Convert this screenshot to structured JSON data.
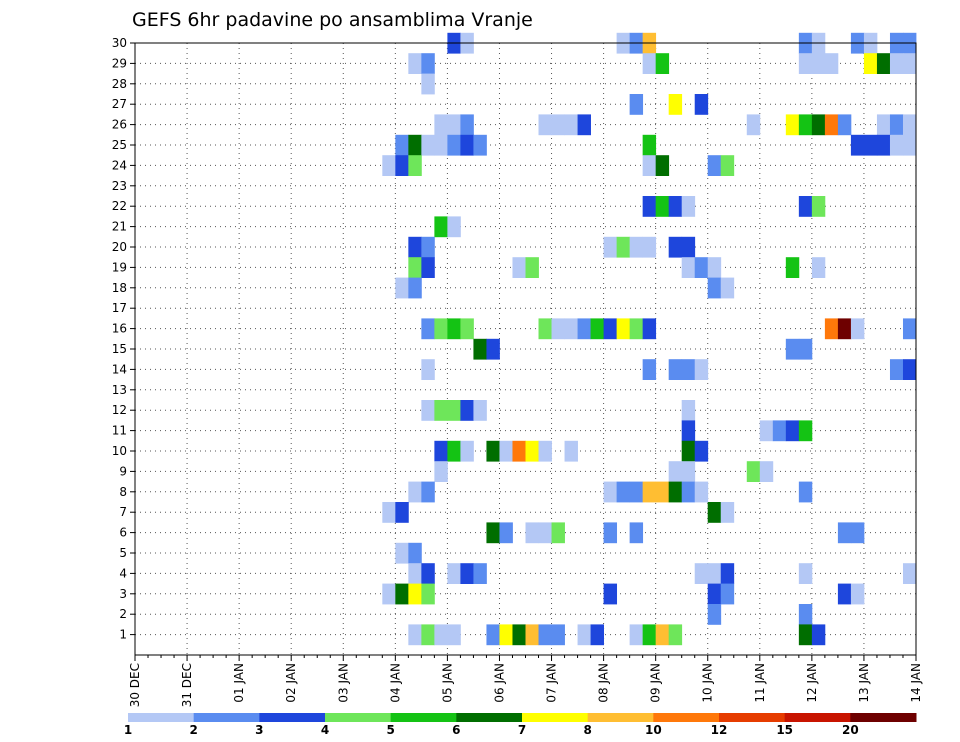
{
  "chart_data": {
    "type": "heatmap",
    "title": "GEFS 6hr padavine po ansamblima Vranje",
    "y_ticks": [
      "30",
      "29",
      "28",
      "27",
      "26",
      "25",
      "24",
      "23",
      "22",
      "21",
      "20",
      "19",
      "18",
      "17",
      "16",
      "15",
      "14",
      "13",
      "12",
      "11",
      "10",
      "9",
      "8",
      "7",
      "6",
      "5",
      "4",
      "3",
      "2",
      "1"
    ],
    "x_ticks": [
      "30 DEC",
      "31 DEC",
      "01 JAN",
      "02 JAN",
      "03 JAN",
      "04 JAN",
      "05 JAN",
      "06 JAN",
      "07 JAN",
      "08 JAN",
      "09 JAN",
      "10 JAN",
      "11 JAN",
      "12 JAN",
      "13 JAN",
      "14 JAN"
    ],
    "x_range": [
      "30 DEC 00Z",
      "14 JAN 00Z"
    ],
    "time_step_hours": 6,
    "members": 31,
    "grid": "dotted",
    "colorbar": {
      "labels": [
        "1",
        "2",
        "3",
        "4",
        "5",
        "6",
        "7",
        "8",
        "10",
        "12",
        "15",
        "20"
      ],
      "colors": [
        "#b4c8f5",
        "#5a8cf0",
        "#1e46dc",
        "#6ee65a",
        "#14c314",
        "#006e00",
        "#ffff00",
        "#ffbe32",
        "#ff780a",
        "#e63c00",
        "#c81400",
        "#6e0000"
      ]
    },
    "cells": [
      [
        30,
        "05 JAN 00Z",
        3
      ],
      [
        30,
        "05 JAN 06Z",
        1
      ],
      [
        30,
        "08 JAN 06Z",
        1
      ],
      [
        30,
        "08 JAN 12Z",
        2
      ],
      [
        30,
        "08 JAN 18Z",
        8
      ],
      [
        30,
        "11 JAN 18Z",
        2
      ],
      [
        30,
        "12 JAN 00Z",
        1
      ],
      [
        30,
        "12 JAN 18Z",
        2
      ],
      [
        30,
        "13 JAN 00Z",
        1
      ],
      [
        30,
        "13 JAN 12Z",
        2
      ],
      [
        30,
        "13 JAN 18Z",
        2
      ],
      [
        29,
        "04 JAN 06Z",
        1
      ],
      [
        29,
        "04 JAN 12Z",
        2
      ],
      [
        29,
        "08 JAN 18Z",
        1
      ],
      [
        29,
        "09 JAN 00Z",
        5
      ],
      [
        29,
        "11 JAN 18Z",
        1
      ],
      [
        29,
        "12 JAN 00Z",
        1
      ],
      [
        29,
        "12 JAN 06Z",
        1
      ],
      [
        29,
        "13 JAN 00Z",
        7
      ],
      [
        29,
        "13 JAN 06Z",
        6
      ],
      [
        29,
        "13 JAN 12Z",
        1
      ],
      [
        29,
        "13 JAN 18Z",
        1
      ],
      [
        28,
        "04 JAN 12Z",
        1
      ],
      [
        27,
        "08 JAN 12Z",
        2
      ],
      [
        27,
        "09 JAN 06Z",
        7
      ],
      [
        27,
        "09 JAN 18Z",
        3
      ],
      [
        26,
        "04 JAN 18Z",
        1
      ],
      [
        26,
        "05 JAN 00Z",
        1
      ],
      [
        26,
        "05 JAN 06Z",
        2
      ],
      [
        26,
        "06 JAN 18Z",
        1
      ],
      [
        26,
        "07 JAN 00Z",
        1
      ],
      [
        26,
        "07 JAN 06Z",
        1
      ],
      [
        26,
        "07 JAN 12Z",
        3
      ],
      [
        26,
        "10 JAN 18Z",
        1
      ],
      [
        26,
        "11 JAN 12Z",
        7
      ],
      [
        26,
        "11 JAN 18Z",
        5
      ],
      [
        26,
        "12 JAN 00Z",
        6
      ],
      [
        26,
        "12 JAN 06Z",
        10
      ],
      [
        26,
        "12 JAN 12Z",
        2
      ],
      [
        26,
        "13 JAN 06Z",
        1
      ],
      [
        26,
        "13 JAN 12Z",
        2
      ],
      [
        26,
        "13 JAN 18Z",
        1
      ],
      [
        25,
        "04 JAN 00Z",
        2
      ],
      [
        25,
        "04 JAN 06Z",
        6
      ],
      [
        25,
        "04 JAN 12Z",
        1
      ],
      [
        25,
        "04 JAN 18Z",
        1
      ],
      [
        25,
        "05 JAN 00Z",
        2
      ],
      [
        25,
        "05 JAN 06Z",
        3
      ],
      [
        25,
        "05 JAN 12Z",
        2
      ],
      [
        25,
        "08 JAN 18Z",
        5
      ],
      [
        25,
        "12 JAN 18Z",
        3
      ],
      [
        25,
        "13 JAN 00Z",
        3
      ],
      [
        25,
        "13 JAN 06Z",
        3
      ],
      [
        25,
        "13 JAN 12Z",
        1
      ],
      [
        25,
        "13 JAN 18Z",
        1
      ],
      [
        24,
        "03 JAN 18Z",
        1
      ],
      [
        24,
        "04 JAN 00Z",
        3
      ],
      [
        24,
        "04 JAN 06Z",
        4
      ],
      [
        24,
        "08 JAN 18Z",
        1
      ],
      [
        24,
        "09 JAN 00Z",
        6
      ],
      [
        24,
        "10 JAN 00Z",
        2
      ],
      [
        24,
        "10 JAN 06Z",
        4
      ],
      [
        22,
        "08 JAN 18Z",
        3
      ],
      [
        22,
        "09 JAN 00Z",
        5
      ],
      [
        22,
        "09 JAN 06Z",
        3
      ],
      [
        22,
        "09 JAN 12Z",
        1
      ],
      [
        22,
        "11 JAN 18Z",
        3
      ],
      [
        22,
        "12 JAN 00Z",
        4
      ],
      [
        21,
        "04 JAN 18Z",
        5
      ],
      [
        21,
        "05 JAN 00Z",
        1
      ],
      [
        20,
        "04 JAN 06Z",
        3
      ],
      [
        20,
        "04 JAN 12Z",
        2
      ],
      [
        20,
        "08 JAN 00Z",
        1
      ],
      [
        20,
        "08 JAN 06Z",
        4
      ],
      [
        20,
        "08 JAN 12Z",
        1
      ],
      [
        20,
        "08 JAN 18Z",
        1
      ],
      [
        20,
        "09 JAN 06Z",
        3
      ],
      [
        20,
        "09 JAN 12Z",
        3
      ],
      [
        19,
        "04 JAN 06Z",
        4
      ],
      [
        19,
        "04 JAN 12Z",
        3
      ],
      [
        19,
        "06 JAN 06Z",
        1
      ],
      [
        19,
        "06 JAN 12Z",
        4
      ],
      [
        19,
        "09 JAN 12Z",
        1
      ],
      [
        19,
        "09 JAN 18Z",
        2
      ],
      [
        19,
        "10 JAN 00Z",
        1
      ],
      [
        19,
        "11 JAN 12Z",
        5
      ],
      [
        19,
        "12 JAN 00Z",
        1
      ],
      [
        18,
        "04 JAN 00Z",
        1
      ],
      [
        18,
        "04 JAN 06Z",
        2
      ],
      [
        18,
        "10 JAN 00Z",
        2
      ],
      [
        18,
        "10 JAN 06Z",
        1
      ],
      [
        16,
        "04 JAN 12Z",
        2
      ],
      [
        16,
        "04 JAN 18Z",
        4
      ],
      [
        16,
        "05 JAN 00Z",
        5
      ],
      [
        16,
        "05 JAN 06Z",
        4
      ],
      [
        16,
        "06 JAN 18Z",
        4
      ],
      [
        16,
        "07 JAN 00Z",
        1
      ],
      [
        16,
        "07 JAN 06Z",
        1
      ],
      [
        16,
        "07 JAN 12Z",
        2
      ],
      [
        16,
        "07 JAN 18Z",
        5
      ],
      [
        16,
        "08 JAN 00Z",
        3
      ],
      [
        16,
        "08 JAN 06Z",
        7
      ],
      [
        16,
        "08 JAN 12Z",
        4
      ],
      [
        16,
        "08 JAN 18Z",
        3
      ],
      [
        16,
        "12 JAN 06Z",
        10
      ],
      [
        16,
        "12 JAN 12Z",
        20
      ],
      [
        16,
        "12 JAN 18Z",
        1
      ],
      [
        16,
        "13 JAN 18Z",
        2
      ],
      [
        15,
        "05 JAN 12Z",
        6
      ],
      [
        15,
        "05 JAN 18Z",
        3
      ],
      [
        15,
        "11 JAN 12Z",
        2
      ],
      [
        15,
        "11 JAN 18Z",
        2
      ],
      [
        14,
        "04 JAN 12Z",
        1
      ],
      [
        14,
        "08 JAN 18Z",
        2
      ],
      [
        14,
        "09 JAN 06Z",
        2
      ],
      [
        14,
        "09 JAN 12Z",
        2
      ],
      [
        14,
        "09 JAN 18Z",
        1
      ],
      [
        14,
        "13 JAN 12Z",
        2
      ],
      [
        14,
        "13 JAN 18Z",
        3
      ],
      [
        12,
        "04 JAN 12Z",
        1
      ],
      [
        12,
        "04 JAN 18Z",
        4
      ],
      [
        12,
        "05 JAN 00Z",
        4
      ],
      [
        12,
        "05 JAN 06Z",
        3
      ],
      [
        12,
        "05 JAN 12Z",
        1
      ],
      [
        12,
        "09 JAN 12Z",
        1
      ],
      [
        11,
        "09 JAN 12Z",
        3
      ],
      [
        11,
        "11 JAN 00Z",
        1
      ],
      [
        11,
        "11 JAN 06Z",
        2
      ],
      [
        11,
        "11 JAN 12Z",
        3
      ],
      [
        11,
        "11 JAN 18Z",
        5
      ],
      [
        10,
        "04 JAN 18Z",
        3
      ],
      [
        10,
        "05 JAN 00Z",
        5
      ],
      [
        10,
        "05 JAN 06Z",
        1
      ],
      [
        10,
        "05 JAN 18Z",
        6
      ],
      [
        10,
        "06 JAN 00Z",
        1
      ],
      [
        10,
        "06 JAN 06Z",
        10
      ],
      [
        10,
        "06 JAN 12Z",
        7
      ],
      [
        10,
        "06 JAN 18Z",
        1
      ],
      [
        10,
        "07 JAN 06Z",
        1
      ],
      [
        10,
        "09 JAN 12Z",
        6
      ],
      [
        10,
        "09 JAN 18Z",
        3
      ],
      [
        9,
        "04 JAN 18Z",
        1
      ],
      [
        9,
        "09 JAN 06Z",
        1
      ],
      [
        9,
        "09 JAN 12Z",
        1
      ],
      [
        9,
        "10 JAN 18Z",
        4
      ],
      [
        9,
        "11 JAN 00Z",
        1
      ],
      [
        8,
        "04 JAN 06Z",
        1
      ],
      [
        8,
        "04 JAN 12Z",
        2
      ],
      [
        8,
        "08 JAN 00Z",
        1
      ],
      [
        8,
        "08 JAN 06Z",
        2
      ],
      [
        8,
        "08 JAN 12Z",
        2
      ],
      [
        8,
        "08 JAN 18Z",
        8
      ],
      [
        8,
        "09 JAN 00Z",
        8
      ],
      [
        8,
        "09 JAN 06Z",
        6
      ],
      [
        8,
        "09 JAN 12Z",
        2
      ],
      [
        8,
        "09 JAN 18Z",
        1
      ],
      [
        8,
        "11 JAN 18Z",
        2
      ],
      [
        7,
        "03 JAN 18Z",
        1
      ],
      [
        7,
        "04 JAN 00Z",
        3
      ],
      [
        7,
        "10 JAN 00Z",
        6
      ],
      [
        7,
        "10 JAN 06Z",
        1
      ],
      [
        6,
        "05 JAN 18Z",
        6
      ],
      [
        6,
        "06 JAN 00Z",
        2
      ],
      [
        6,
        "06 JAN 12Z",
        1
      ],
      [
        6,
        "06 JAN 18Z",
        1
      ],
      [
        6,
        "07 JAN 00Z",
        4
      ],
      [
        6,
        "08 JAN 00Z",
        2
      ],
      [
        6,
        "08 JAN 12Z",
        2
      ],
      [
        6,
        "12 JAN 12Z",
        2
      ],
      [
        6,
        "12 JAN 18Z",
        2
      ],
      [
        5,
        "04 JAN 00Z",
        1
      ],
      [
        5,
        "04 JAN 06Z",
        2
      ],
      [
        4,
        "04 JAN 06Z",
        1
      ],
      [
        4,
        "04 JAN 12Z",
        3
      ],
      [
        4,
        "05 JAN 00Z",
        1
      ],
      [
        4,
        "05 JAN 06Z",
        3
      ],
      [
        4,
        "05 JAN 12Z",
        2
      ],
      [
        4,
        "09 JAN 18Z",
        1
      ],
      [
        4,
        "10 JAN 00Z",
        1
      ],
      [
        4,
        "10 JAN 06Z",
        3
      ],
      [
        4,
        "11 JAN 18Z",
        1
      ],
      [
        4,
        "13 JAN 18Z",
        1
      ],
      [
        3,
        "03 JAN 18Z",
        1
      ],
      [
        3,
        "04 JAN 00Z",
        6
      ],
      [
        3,
        "04 JAN 06Z",
        7
      ],
      [
        3,
        "04 JAN 12Z",
        4
      ],
      [
        3,
        "08 JAN 00Z",
        3
      ],
      [
        3,
        "10 JAN 00Z",
        3
      ],
      [
        3,
        "10 JAN 06Z",
        2
      ],
      [
        3,
        "12 JAN 12Z",
        3
      ],
      [
        3,
        "12 JAN 18Z",
        1
      ],
      [
        2,
        "10 JAN 00Z",
        2
      ],
      [
        2,
        "11 JAN 18Z",
        2
      ],
      [
        1,
        "04 JAN 06Z",
        1
      ],
      [
        1,
        "04 JAN 12Z",
        4
      ],
      [
        1,
        "04 JAN 18Z",
        1
      ],
      [
        1,
        "05 JAN 00Z",
        1
      ],
      [
        1,
        "05 JAN 18Z",
        2
      ],
      [
        1,
        "06 JAN 00Z",
        7
      ],
      [
        1,
        "06 JAN 06Z",
        6
      ],
      [
        1,
        "06 JAN 12Z",
        8
      ],
      [
        1,
        "06 JAN 18Z",
        2
      ],
      [
        1,
        "07 JAN 00Z",
        2
      ],
      [
        1,
        "07 JAN 12Z",
        1
      ],
      [
        1,
        "07 JAN 18Z",
        3
      ],
      [
        1,
        "08 JAN 12Z",
        1
      ],
      [
        1,
        "08 JAN 18Z",
        5
      ],
      [
        1,
        "09 JAN 00Z",
        8
      ],
      [
        1,
        "09 JAN 06Z",
        4
      ],
      [
        1,
        "11 JAN 18Z",
        6
      ],
      [
        1,
        "12 JAN 00Z",
        3
      ]
    ]
  }
}
